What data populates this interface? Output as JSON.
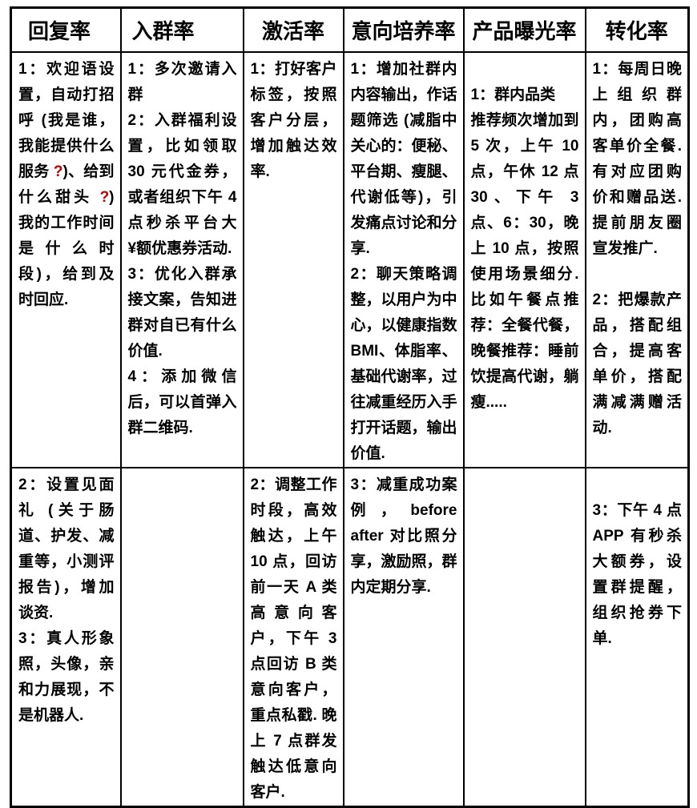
{
  "colors": {
    "text": "#000000",
    "border": "#000000",
    "background": "#ffffff",
    "question_mark": "#c00000"
  },
  "table": {
    "headers": [
      {
        "label": "回复率",
        "key": "reply-rate"
      },
      {
        "label": "入群率",
        "key": "join-group-rate"
      },
      {
        "label": "激活率",
        "key": "activation-rate"
      },
      {
        "label": "意向培养率",
        "key": "intent-cultivation-rate"
      },
      {
        "label": "产品曝光率",
        "key": "product-exposure-rate"
      },
      {
        "label": "转化率",
        "key": "conversion-rate"
      }
    ],
    "rows": [
      {
        "cells": [
          {
            "paragraphs": [
              {
                "runs": [
                  {
                    "t": "1：欢迎语设置，自动打招呼 (我是谁，我能提供什么服务 "
                  },
                  {
                    "t": "?",
                    "highlight": true
                  },
                  {
                    "t": ")、给到什么甜头 "
                  },
                  {
                    "t": "?",
                    "highlight": true
                  },
                  {
                    "t": ") 我的工作时间是什么时段)，给到及时回应."
                  }
                ]
              }
            ]
          },
          {
            "paragraphs": [
              {
                "runs": [
                  {
                    "t": "1：多次邀请入群"
                  }
                ]
              },
              {
                "runs": [
                  {
                    "t": "2：入群福利设置，比如领取 30 元代金券，或者组织下午 4 点秒杀平台大 ¥额优惠券活动."
                  }
                ]
              },
              {
                "runs": [
                  {
                    "t": "3：优化入群承接文案，告知进群对自已有什么价值."
                  }
                ]
              },
              {
                "runs": [
                  {
                    "t": "4：添加微信后，可以首弹入群二维码."
                  }
                ]
              }
            ]
          },
          {
            "paragraphs": [
              {
                "runs": [
                  {
                    "t": "1：打好客户标签，按照客户分层，增加触达效率."
                  }
                ]
              }
            ]
          },
          {
            "paragraphs": [
              {
                "runs": [
                  {
                    "t": "1：增加社群内内容输出，作话题筛选 (减脂中关心的：便秘、平台期、瘦腿、代谢低等)，引发痛点讨论和分享."
                  }
                ]
              },
              {
                "runs": [
                  {
                    "t": "2：聊天策略调整，以用户为中心，以健康指数 BMI、体脂率、基础代谢率，过往减重经历入手打开话题，输出价值."
                  }
                ]
              }
            ]
          },
          {
            "paragraphs": [
              {
                "runs": []
              },
              {
                "runs": [
                  {
                    "t": "1：群内品类"
                  }
                ]
              },
              {
                "runs": [
                  {
                    "t": "推荐频次增加到 5 次，上午 10 点，午休 12 点 30、下午 3 点、6：30，晚上 10 点，按照使用场景细分. 比如午餐点推荐：全餐代餐，晚餐推荐：睡前饮提高代谢，躺瘦....."
                  }
                ]
              }
            ]
          },
          {
            "paragraphs": [
              {
                "runs": [
                  {
                    "t": "1：每周日晚上组织群内，团购高客单价全餐. 有对应团购价和赠品送. 提前朋友圈宣发推广."
                  }
                ]
              },
              {
                "runs": []
              },
              {
                "runs": [
                  {
                    "t": "2：把爆款产品，搭配组合，提高客单价，搭配满减满赠活动."
                  }
                ]
              }
            ]
          }
        ]
      },
      {
        "cells": [
          {
            "paragraphs": [
              {
                "runs": [
                  {
                    "t": "2：设置见面礼 (关于肠道、护发、减重等，小测评报告)，增加谈资."
                  }
                ]
              },
              {
                "runs": [
                  {
                    "t": "3：真人形象照，头像，亲和力展现，不是机器人."
                  }
                ]
              }
            ]
          },
          {
            "paragraphs": []
          },
          {
            "paragraphs": [
              {
                "runs": [
                  {
                    "t": "2：调整工作时段，高效触达，上午 10 点，回访前一天 A 类高意向客户，下午 3 点回访 B 类意向客户，重点私戳. 晚上 7 点群发触达低意向客户."
                  }
                ]
              }
            ]
          },
          {
            "paragraphs": [
              {
                "runs": [
                  {
                    "t": "3：减重成功案例，before after 对比照分享，激励照，群内定期分享."
                  }
                ]
              }
            ]
          },
          {
            "paragraphs": []
          },
          {
            "paragraphs": [
              {
                "runs": []
              },
              {
                "runs": [
                  {
                    "t": "3：下午 4 点 APP 有秒杀大额券，设置群提醒，组织抢券下单."
                  }
                ]
              }
            ]
          }
        ]
      }
    ]
  }
}
